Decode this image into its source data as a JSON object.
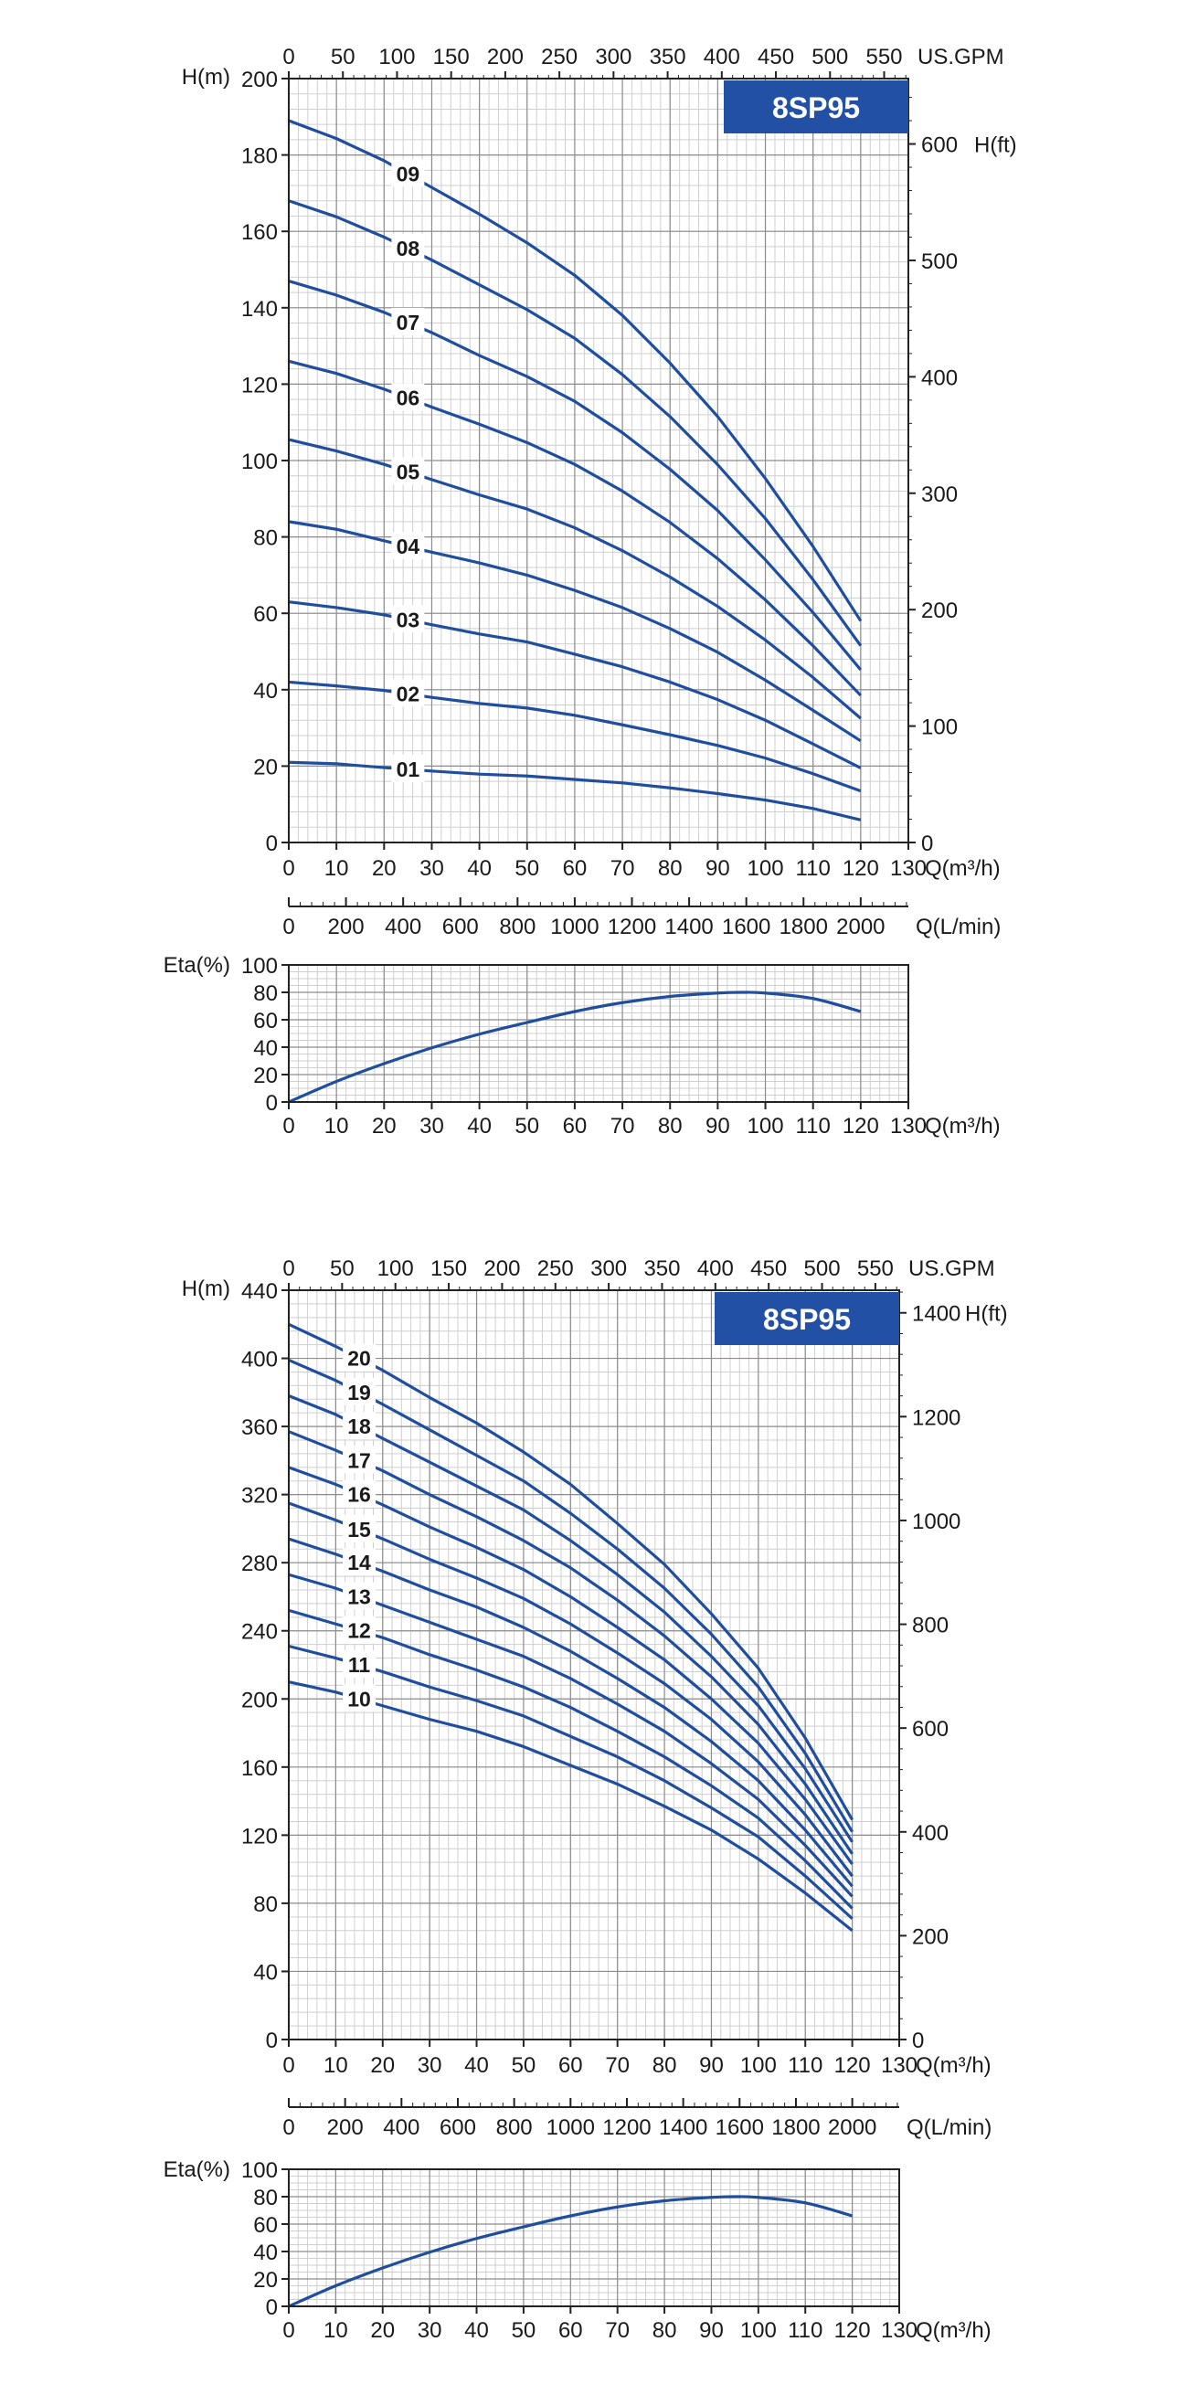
{
  "colors": {
    "curve": "#1f4e9e",
    "badge": "#2150a5",
    "grid_major": "#8c8c8c",
    "grid_minor": "#cfcfcf",
    "axis": "#222222"
  },
  "chart_data": [
    {
      "type": "line",
      "title": "8SP95",
      "xlabel": "Q(m³/h)",
      "ylabel": "H(m)",
      "xlim": [
        0,
        130
      ],
      "ylim": [
        0,
        200
      ],
      "x_ticks": [
        0,
        10,
        20,
        30,
        40,
        50,
        60,
        70,
        80,
        90,
        100,
        110,
        120,
        130
      ],
      "y_ticks": [
        0,
        20,
        40,
        60,
        80,
        100,
        120,
        140,
        160,
        180,
        200
      ],
      "grid": true,
      "top_axis": {
        "label": "US.GPM",
        "ticks": [
          0,
          50,
          100,
          150,
          200,
          250,
          300,
          350,
          400,
          450,
          500,
          550
        ]
      },
      "right_axis": {
        "label": "H(ft)",
        "ticks": [
          0,
          100,
          200,
          300,
          400,
          500,
          600
        ]
      },
      "series": [
        {
          "name": "01",
          "x": [
            0,
            10,
            20,
            30,
            40,
            50,
            60,
            70,
            80,
            90,
            100,
            110,
            120
          ],
          "values": [
            21,
            20.6,
            19.6,
            18.7,
            17.9,
            17.4,
            16.5,
            15.6,
            14.3,
            12.8,
            11.1,
            8.9,
            5.9
          ]
        },
        {
          "name": "02",
          "x": [
            0,
            10,
            20,
            30,
            40,
            50,
            60,
            70,
            80,
            90,
            100,
            110,
            120
          ],
          "values": [
            42,
            41,
            39.8,
            38,
            36.4,
            35.2,
            33.3,
            30.8,
            28.2,
            25.4,
            22.1,
            18,
            13.5
          ]
        },
        {
          "name": "03",
          "x": [
            0,
            10,
            20,
            30,
            40,
            50,
            60,
            70,
            80,
            90,
            100,
            110,
            120
          ],
          "values": [
            63,
            61.5,
            59.6,
            57,
            54.6,
            52.5,
            49.3,
            46,
            42,
            37.4,
            32,
            25.8,
            19.5
          ]
        },
        {
          "name": "04",
          "x": [
            0,
            10,
            20,
            30,
            40,
            50,
            60,
            70,
            80,
            90,
            100,
            110,
            120
          ],
          "values": [
            84,
            82,
            79,
            76,
            73.2,
            70,
            66,
            61.5,
            56,
            49.8,
            42.5,
            34.6,
            26.6
          ]
        },
        {
          "name": "05",
          "x": [
            0,
            10,
            20,
            30,
            40,
            50,
            60,
            70,
            80,
            90,
            100,
            110,
            120
          ],
          "values": [
            105.5,
            102.5,
            99,
            95,
            91,
            87.3,
            82.4,
            76.4,
            69.5,
            61.8,
            53,
            43.2,
            32.5
          ]
        },
        {
          "name": "06",
          "x": [
            0,
            10,
            20,
            30,
            40,
            50,
            60,
            70,
            80,
            90,
            100,
            110,
            120
          ],
          "values": [
            126,
            122.8,
            118.7,
            114,
            109.5,
            104.7,
            99,
            92,
            83.8,
            74.3,
            63.5,
            51.5,
            38.5
          ]
        },
        {
          "name": "07",
          "x": [
            0,
            10,
            20,
            30,
            40,
            50,
            60,
            70,
            80,
            90,
            100,
            110,
            120
          ],
          "values": [
            147,
            143.3,
            138.8,
            133.5,
            127.5,
            122,
            115.5,
            107.3,
            97.7,
            86.9,
            74,
            60.2,
            45.2
          ]
        },
        {
          "name": "08",
          "x": [
            0,
            10,
            20,
            30,
            40,
            50,
            60,
            70,
            80,
            90,
            100,
            110,
            120
          ],
          "values": [
            168,
            163.8,
            158.5,
            152.5,
            146,
            139.5,
            132,
            122.5,
            111.5,
            98.9,
            84.8,
            68.8,
            51.5
          ]
        },
        {
          "name": "09",
          "x": [
            0,
            10,
            20,
            30,
            40,
            50,
            60,
            70,
            80,
            90,
            100,
            110,
            120
          ],
          "values": [
            189,
            184.3,
            178.5,
            171.5,
            164.5,
            157,
            148.5,
            138,
            125.5,
            111.5,
            95.3,
            77.5,
            58
          ]
        }
      ]
    },
    {
      "type": "line",
      "xlabel": "Q(L/min)",
      "xlim": [
        0,
        2166.67
      ],
      "x_ticks": [
        0,
        200,
        400,
        600,
        800,
        1000,
        1200,
        1400,
        1600,
        1800,
        2000
      ],
      "series": []
    },
    {
      "type": "line",
      "xlabel": "Q(m³/h)",
      "ylabel": "Eta(%)",
      "xlim": [
        0,
        130
      ],
      "ylim": [
        0,
        100
      ],
      "x_ticks": [
        0,
        10,
        20,
        30,
        40,
        50,
        60,
        70,
        80,
        90,
        100,
        110,
        120,
        130
      ],
      "y_ticks": [
        0,
        20,
        40,
        60,
        80,
        100
      ],
      "grid": true,
      "series": [
        {
          "x": [
            0,
            10,
            20,
            30,
            40,
            50,
            60,
            70,
            80,
            90,
            95,
            100,
            110,
            120
          ],
          "values": [
            0,
            15,
            28,
            39.5,
            49.5,
            58,
            66,
            72.5,
            77,
            79.5,
            80,
            79.5,
            75.5,
            66
          ]
        }
      ]
    },
    {
      "type": "line",
      "title": "8SP95",
      "xlabel": "Q(m³/h)",
      "ylabel": "H(m)",
      "xlim": [
        0,
        130
      ],
      "ylim": [
        0,
        440
      ],
      "x_ticks": [
        0,
        10,
        20,
        30,
        40,
        50,
        60,
        70,
        80,
        90,
        100,
        110,
        120,
        130
      ],
      "y_ticks": [
        0,
        40,
        80,
        120,
        160,
        200,
        240,
        280,
        320,
        360,
        400,
        440
      ],
      "grid": true,
      "top_axis": {
        "label": "US.GPM",
        "ticks": [
          0,
          50,
          100,
          150,
          200,
          250,
          300,
          350,
          400,
          450,
          500,
          550
        ]
      },
      "right_axis": {
        "label": "H(ft)",
        "ticks": [
          0,
          200,
          400,
          600,
          800,
          1000,
          1200,
          1400
        ]
      },
      "series": [
        {
          "name": "10",
          "x": [
            0,
            10,
            20,
            30,
            40,
            50,
            60,
            70,
            80,
            90,
            100,
            110,
            120
          ],
          "values": [
            210,
            204,
            196,
            188,
            181,
            172,
            161,
            150,
            137,
            123,
            106,
            86,
            64
          ]
        },
        {
          "name": "11",
          "x": [
            0,
            10,
            20,
            30,
            40,
            50,
            60,
            70,
            80,
            90,
            100,
            110,
            120
          ],
          "values": [
            231,
            224,
            216,
            207,
            199,
            190,
            178,
            166,
            152,
            136,
            119,
            96,
            71
          ]
        },
        {
          "name": "12",
          "x": [
            0,
            10,
            20,
            30,
            40,
            50,
            60,
            70,
            80,
            90,
            100,
            110,
            120
          ],
          "values": [
            252,
            244,
            236,
            226,
            217,
            207,
            195,
            181,
            166,
            149,
            130,
            105,
            77
          ]
        },
        {
          "name": "13",
          "x": [
            0,
            10,
            20,
            30,
            40,
            50,
            60,
            70,
            80,
            90,
            100,
            110,
            120
          ],
          "values": [
            273,
            265,
            255,
            245,
            235,
            225,
            212,
            197,
            181,
            162,
            141,
            114,
            84
          ]
        },
        {
          "name": "14",
          "x": [
            0,
            10,
            20,
            30,
            40,
            50,
            60,
            70,
            80,
            90,
            100,
            110,
            120
          ],
          "values": [
            294,
            285,
            275,
            264,
            254,
            242,
            228,
            212,
            195,
            175,
            152,
            123,
            90
          ]
        },
        {
          "name": "15",
          "x": [
            0,
            10,
            20,
            30,
            40,
            50,
            60,
            70,
            80,
            90,
            100,
            110,
            120
          ],
          "values": [
            315,
            305,
            294,
            282,
            271,
            259,
            244,
            227,
            209,
            188,
            163,
            132,
            96
          ]
        },
        {
          "name": "16",
          "x": [
            0,
            10,
            20,
            30,
            40,
            50,
            60,
            70,
            80,
            90,
            100,
            110,
            120
          ],
          "values": [
            336,
            326,
            314,
            301,
            289,
            276,
            260,
            242,
            223,
            200,
            174,
            141,
            103
          ]
        },
        {
          "name": "17",
          "x": [
            0,
            10,
            20,
            30,
            40,
            50,
            60,
            70,
            80,
            90,
            100,
            110,
            120
          ],
          "values": [
            357,
            346,
            334,
            320,
            307,
            293,
            277,
            258,
            237,
            213,
            185,
            150,
            109
          ]
        },
        {
          "name": "18",
          "x": [
            0,
            10,
            20,
            30,
            40,
            50,
            60,
            70,
            80,
            90,
            100,
            110,
            120
          ],
          "values": [
            378,
            367,
            353,
            339,
            325,
            311,
            293,
            273,
            251,
            225,
            196,
            159,
            116
          ]
        },
        {
          "name": "19",
          "x": [
            0,
            10,
            20,
            30,
            40,
            50,
            60,
            70,
            80,
            90,
            100,
            110,
            120
          ],
          "values": [
            399,
            387,
            373,
            358,
            343,
            328,
            309,
            288,
            265,
            238,
            207,
            168,
            122
          ]
        },
        {
          "name": "20",
          "x": [
            0,
            10,
            20,
            30,
            40,
            50,
            60,
            70,
            80,
            90,
            100,
            110,
            120
          ],
          "values": [
            420,
            407,
            393,
            377,
            362,
            345,
            326,
            303,
            279,
            250,
            218,
            177,
            129
          ]
        }
      ]
    },
    {
      "type": "line",
      "xlabel": "Q(L/min)",
      "xlim": [
        0,
        2166.67
      ],
      "x_ticks": [
        0,
        200,
        400,
        600,
        800,
        1000,
        1200,
        1400,
        1600,
        1800,
        2000
      ],
      "series": []
    },
    {
      "type": "line",
      "xlabel": "Q(m³/h)",
      "ylabel": "Eta(%)",
      "xlim": [
        0,
        130
      ],
      "ylim": [
        0,
        100
      ],
      "x_ticks": [
        0,
        10,
        20,
        30,
        40,
        50,
        60,
        70,
        80,
        90,
        100,
        110,
        120,
        130
      ],
      "y_ticks": [
        0,
        20,
        40,
        60,
        80,
        100
      ],
      "grid": true,
      "series": [
        {
          "x": [
            0,
            10,
            20,
            30,
            40,
            50,
            60,
            70,
            80,
            90,
            95,
            100,
            110,
            120
          ],
          "values": [
            0,
            15,
            28,
            39.5,
            49.5,
            58,
            66,
            72.5,
            77,
            79.5,
            80,
            79.5,
            75.5,
            66
          ]
        }
      ]
    }
  ]
}
